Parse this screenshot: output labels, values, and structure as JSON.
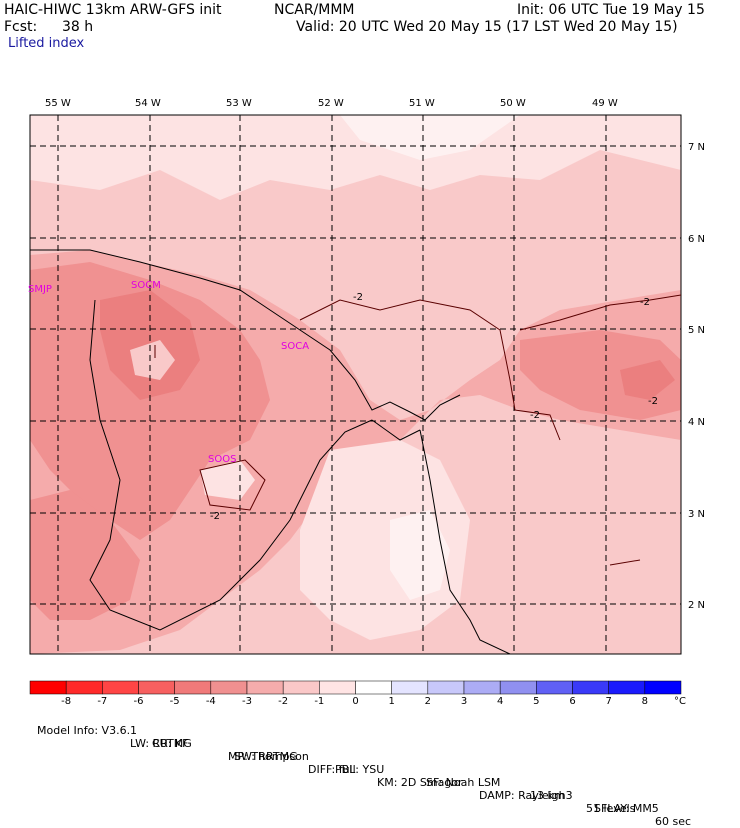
{
  "header": {
    "model": "HAIC-HIWC 13km ARW-GFS init",
    "center": "NCAR/MMM",
    "init": "Init: 06 UTC Tue 19 May 15",
    "fcst_label": "Fcst:",
    "fcst_value": "38 h",
    "valid": "Valid: 20 UTC Wed 20 May 15 (17 LST Wed 20 May 15)",
    "field": "Lifted index"
  },
  "map": {
    "lon_labels": [
      "55 W",
      "54 W",
      "53 W",
      "52 W",
      "51 W",
      "50 W",
      "49 W"
    ],
    "lat_labels": [
      "7 N",
      "6 N",
      "5 N",
      "4 N",
      "3 N",
      "2 N"
    ],
    "sites": [
      "SMJP",
      "SOCM",
      "SOCA",
      "SOOS"
    ],
    "contour_labels": [
      "-2",
      "-2",
      "-2",
      "-2",
      "-2"
    ]
  },
  "colorbar": {
    "labels": [
      "-8",
      "-7",
      "-6",
      "-5",
      "-4",
      "-3",
      "-2",
      "-1",
      "0",
      "1",
      "2",
      "3",
      "4",
      "5",
      "6",
      "7",
      "8"
    ],
    "unit": "°C",
    "colors": [
      "#ff0000",
      "#ff2a2a",
      "#ff4545",
      "#f76060",
      "#f07a7a",
      "#f09090",
      "#f5acac",
      "#fac8c8",
      "#ffe4e4",
      "#ffffff",
      "#e4e4ff",
      "#c8c8fa",
      "#acacf5",
      "#9090f0",
      "#6060f5",
      "#3a3af8",
      "#1a1afc",
      "#0000ff"
    ]
  },
  "footer": {
    "line1": [
      "Model Info: V3.6.1",
      "CU: KF",
      "MP: Thompson",
      "PBL: YSU",
      "SF: Noah LSM",
      "13 km",
      "51 levels",
      "60 sec"
    ],
    "line2": [
      "LW: RRTMG",
      "SW: RRTMG",
      "DIFF: full",
      "KM: 2D Smagor",
      "DAMP: Rayleigh3",
      "SFLAY: MM5"
    ]
  }
}
